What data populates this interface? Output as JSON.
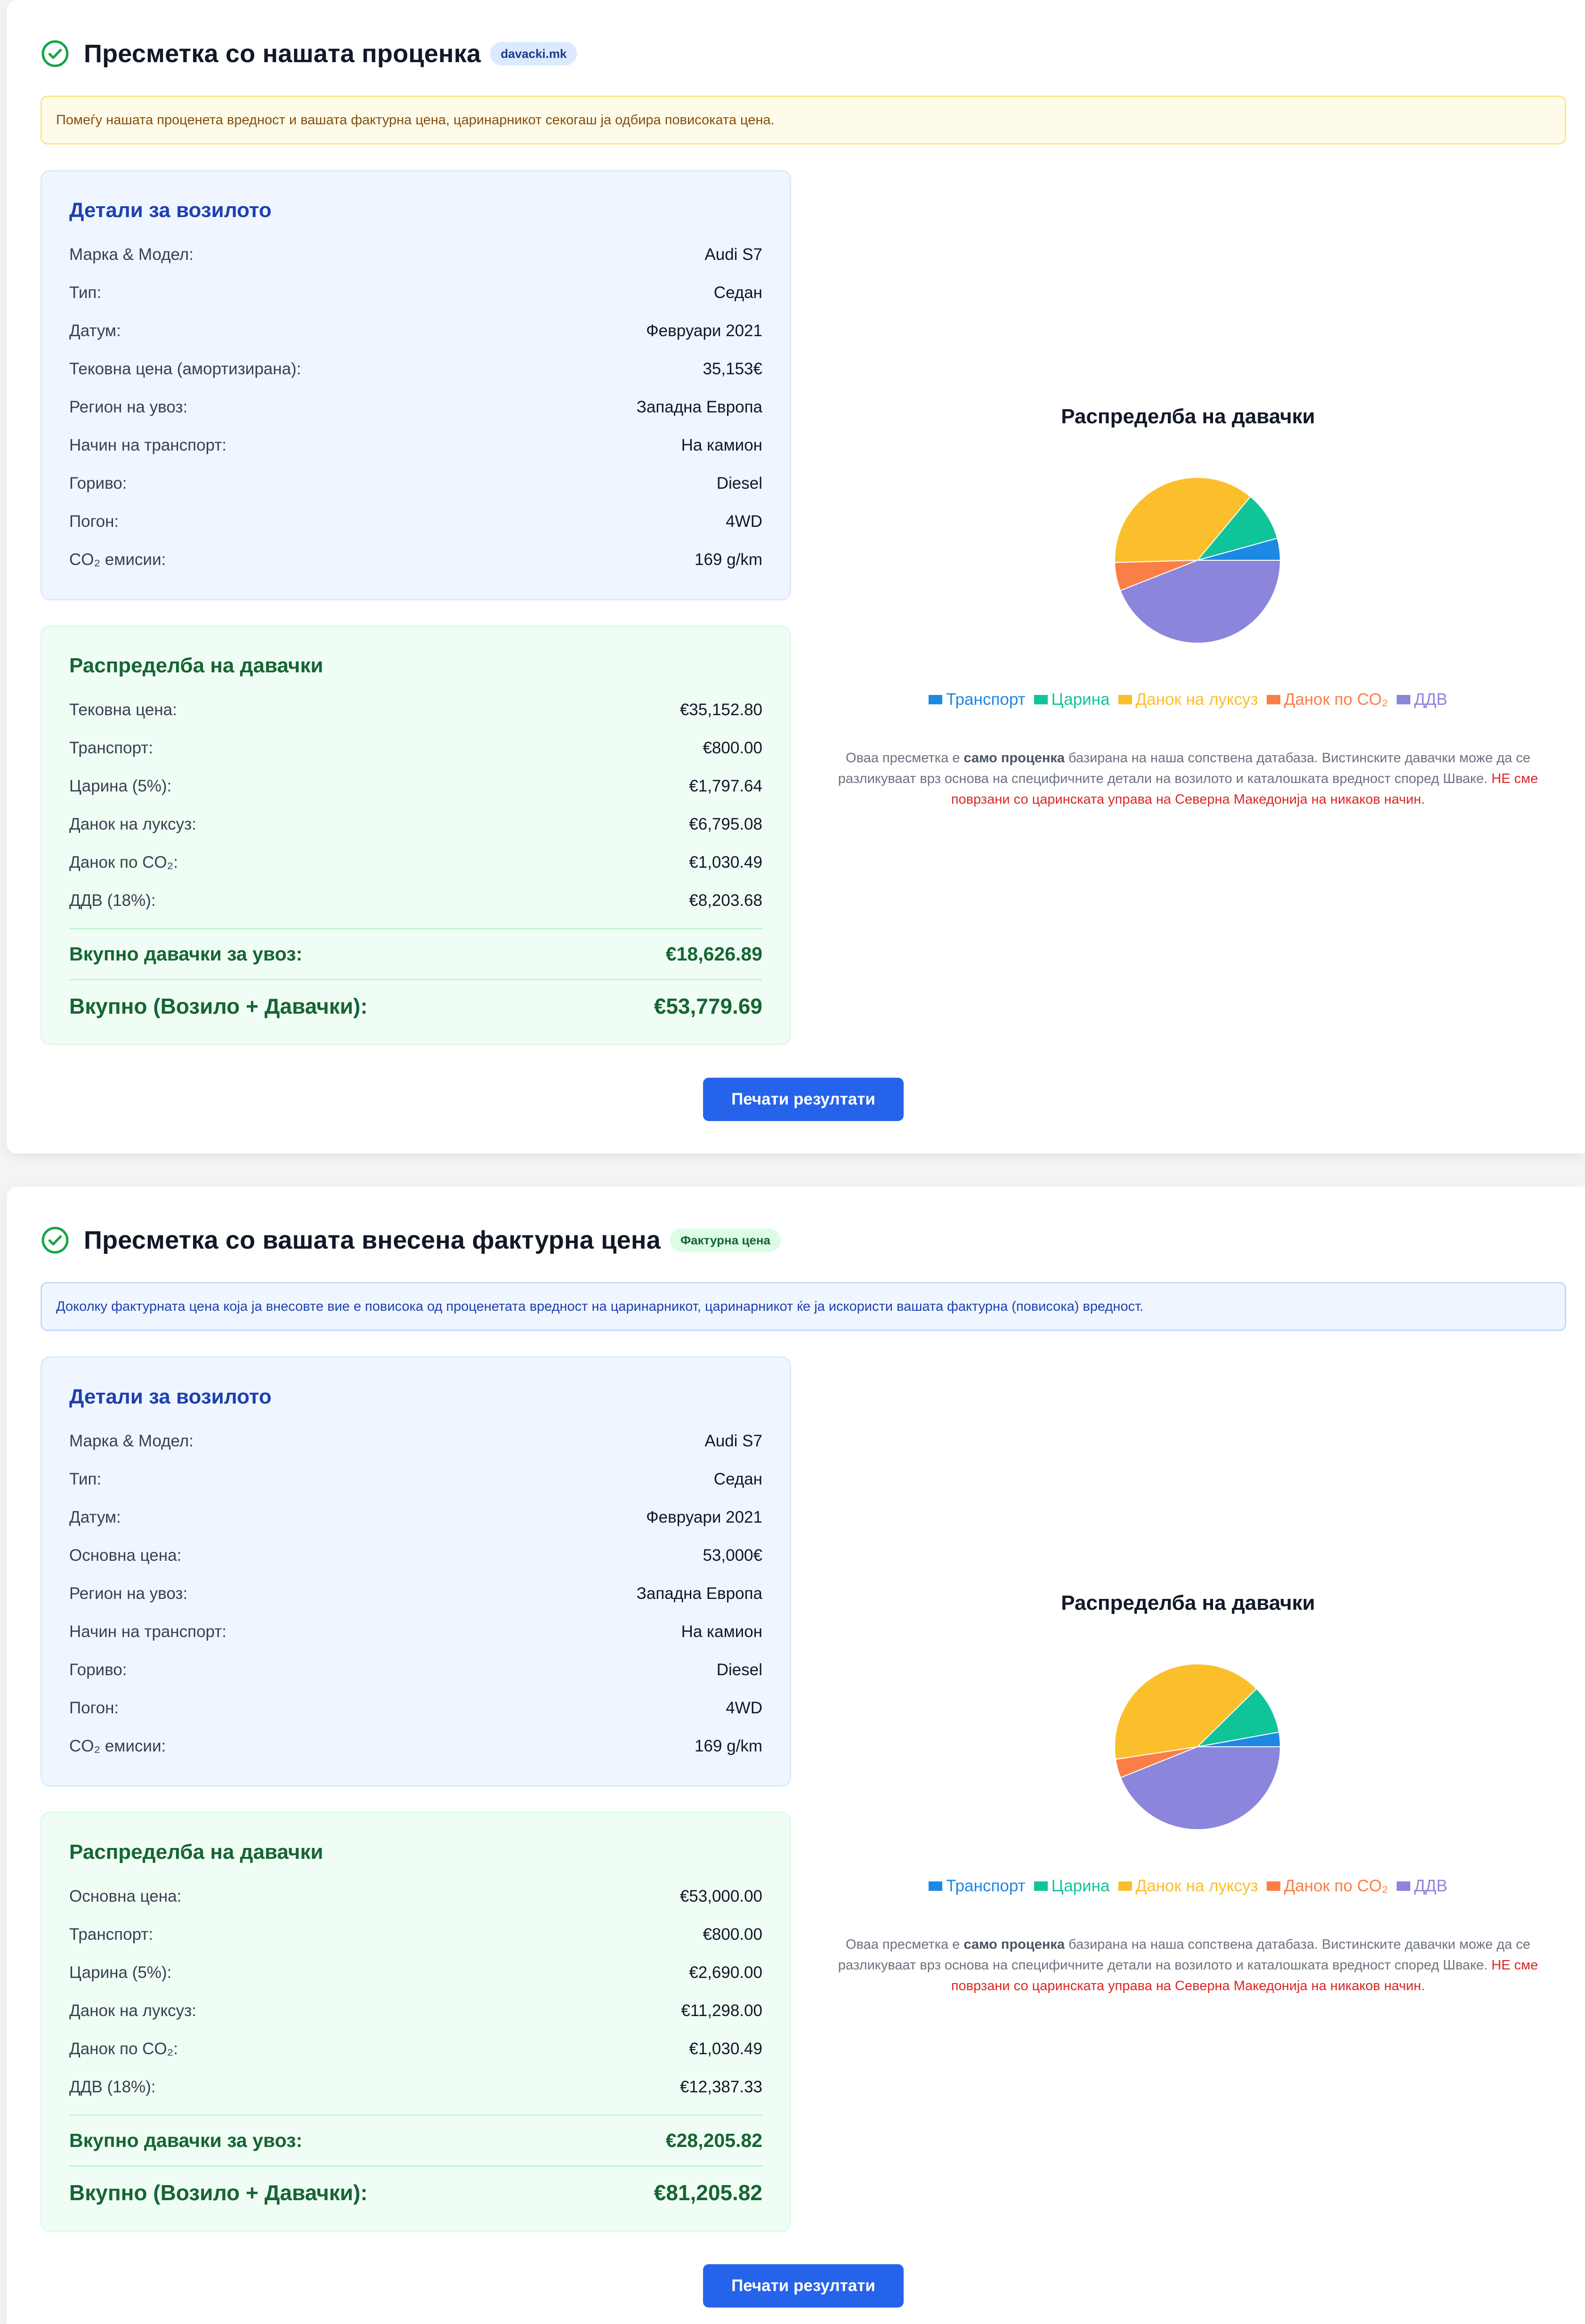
{
  "colors": {
    "transport": "#1e88e5",
    "customs": "#10c499",
    "luxury": "#fbbf2b",
    "co2": "#fb7e47",
    "vat": "#8b85db"
  },
  "sections": [
    {
      "title": "Пресметка со нашата проценка",
      "badge": "davacki.mk",
      "notice": "Помеѓу нашата проценета вредност и вашата фактурна цена, царинарникот секогаш ја одбира повисоката цена.",
      "vehicle": {
        "heading": "Детали за возилото",
        "rows": [
          {
            "label": "Марка & Модел:",
            "value": "Audi S7"
          },
          {
            "label": "Тип:",
            "value": "Седан"
          },
          {
            "label": "Датум:",
            "value": "Февруари 2021"
          },
          {
            "label": "Тековна цена (амортизирана):",
            "value": "35,153€"
          },
          {
            "label": "Регион на увоз:",
            "value": "Западна Европа"
          },
          {
            "label": "Начин на транспорт:",
            "value": "На камион"
          },
          {
            "label": "Гориво:",
            "value": "Diesel"
          },
          {
            "label": "Погон:",
            "value": "4WD"
          },
          {
            "label": "CO₂ емисии:",
            "value": "169 g/km"
          }
        ]
      },
      "duties": {
        "heading": "Распределба на давачки",
        "rows": [
          {
            "label": "Тековна цена:",
            "value": "€35,152.80"
          },
          {
            "label": "Транспорт:",
            "value": "€800.00"
          },
          {
            "label": "Царина (5%):",
            "value": "€1,797.64"
          },
          {
            "label": "Данок на луксуз:",
            "value": "€6,795.08"
          },
          {
            "label": "Данок по CO₂:",
            "value": "€1,030.49"
          },
          {
            "label": "ДДВ (18%):",
            "value": "€8,203.68"
          }
        ],
        "total_duties_label": "Вкупно давачки за увоз:",
        "total_duties_value": "€18,626.89",
        "grand_total_label": "Вкупно (Возило + Давачки):",
        "grand_total_value": "€53,779.69"
      },
      "chart_title": "Распределба на давачки",
      "print_label": "Печати резултати"
    },
    {
      "title": "Пресметка со вашата внесена фактурна цена",
      "badge": "Фактурна цена",
      "notice": "Доколку фактурната цена која ја внесовте вие е повисока од проценетата вредност на царинарникот, царинарникот ќе ја искористи вашата фактурна (повисока) вредност.",
      "vehicle": {
        "heading": "Детали за возилото",
        "rows": [
          {
            "label": "Марка & Модел:",
            "value": "Audi S7"
          },
          {
            "label": "Тип:",
            "value": "Седан"
          },
          {
            "label": "Датум:",
            "value": "Февруари 2021"
          },
          {
            "label": "Основна цена:",
            "value": "53,000€"
          },
          {
            "label": "Регион на увоз:",
            "value": "Западна Европа"
          },
          {
            "label": "Начин на транспорт:",
            "value": "На камион"
          },
          {
            "label": "Гориво:",
            "value": "Diesel"
          },
          {
            "label": "Погон:",
            "value": "4WD"
          },
          {
            "label": "CO₂ емисии:",
            "value": "169 g/km"
          }
        ]
      },
      "duties": {
        "heading": "Распределба на давачки",
        "rows": [
          {
            "label": "Основна цена:",
            "value": "€53,000.00"
          },
          {
            "label": "Транспорт:",
            "value": "€800.00"
          },
          {
            "label": "Царина (5%):",
            "value": "€2,690.00"
          },
          {
            "label": "Данок на луксуз:",
            "value": "€11,298.00"
          },
          {
            "label": "Данок по CO₂:",
            "value": "€1,030.49"
          },
          {
            "label": "ДДВ (18%):",
            "value": "€12,387.33"
          }
        ],
        "total_duties_label": "Вкупно давачки за увоз:",
        "total_duties_value": "€28,205.82",
        "grand_total_label": "Вкупно (Возило + Давачки):",
        "grand_total_value": "€81,205.82"
      },
      "chart_title": "Распределба на давачки",
      "print_label": "Печати резултати"
    }
  ],
  "disclaimer": {
    "part1": "Оваа пресметка е ",
    "bold": "само проценка",
    "part2": " базирана на наша сопствена датабаза. Вистинските давачки може да се разликуваат врз основа на специфичните детали на возилото и каталошката вредност според Шваке. ",
    "warning": "НЕ сме поврзани со царинската управа на Северна Македонија на никаков начин."
  },
  "chart_data": [
    {
      "type": "pie",
      "title": "Распределба на давачки",
      "legend_position": "bottom",
      "labels": [
        "Транспорт",
        "Царина",
        "Данок на луксуз",
        "Данок по CO₂",
        "ДДВ"
      ],
      "values": [
        800.0,
        1797.64,
        6795.08,
        1030.49,
        8203.68
      ]
    },
    {
      "type": "pie",
      "title": "Распределба на давачки",
      "legend_position": "bottom",
      "labels": [
        "Транспорт",
        "Царина",
        "Данок на луксуз",
        "Данок по CO₂",
        "ДДВ"
      ],
      "values": [
        800.0,
        2690.0,
        11298.0,
        1030.49,
        12387.33
      ]
    }
  ]
}
